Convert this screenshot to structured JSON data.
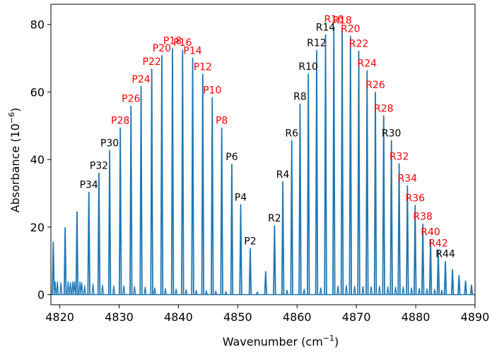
{
  "chart_data": {
    "type": "line",
    "xlabel": "Wavenumber (cm",
    "xlabel_sup": "−1",
    "xlabel_end": ")",
    "ylabel": "Absorbance (10",
    "ylabel_sup": "−6",
    "ylabel_end": ")",
    "xlim": [
      4818.5,
      4890
    ],
    "ylim": [
      -3,
      86
    ],
    "xticks": [
      4820,
      4830,
      4840,
      4850,
      4860,
      4870,
      4880,
      4890
    ],
    "yticks": [
      0,
      20,
      40,
      60,
      80
    ],
    "grid": false,
    "line_color": "#1f77b4",
    "colors": {
      "black": "#000000",
      "red": "#ff0000"
    },
    "peaks": [
      {
        "x": 4818.9,
        "y": 15.5,
        "label": "",
        "color": "black"
      },
      {
        "x": 4820.9,
        "y": 19.8,
        "label": "",
        "color": "black"
      },
      {
        "x": 4822.9,
        "y": 24.5,
        "label": "",
        "color": "black"
      },
      {
        "x": 4824.9,
        "y": 30.3,
        "label": "P34",
        "color": "black"
      },
      {
        "x": 4826.6,
        "y": 36.0,
        "label": "P32",
        "color": "black"
      },
      {
        "x": 4828.4,
        "y": 42.6,
        "label": "P30",
        "color": "black"
      },
      {
        "x": 4830.2,
        "y": 49.3,
        "label": "P28",
        "color": "red"
      },
      {
        "x": 4832.0,
        "y": 55.8,
        "label": "P26",
        "color": "red"
      },
      {
        "x": 4833.7,
        "y": 61.6,
        "label": "P24",
        "color": "red"
      },
      {
        "x": 4835.5,
        "y": 66.8,
        "label": "P22",
        "color": "red"
      },
      {
        "x": 4837.2,
        "y": 70.8,
        "label": "P20",
        "color": "red"
      },
      {
        "x": 4839.0,
        "y": 72.9,
        "label": "P18",
        "color": "red"
      },
      {
        "x": 4840.7,
        "y": 72.4,
        "label": "P16",
        "color": "red"
      },
      {
        "x": 4842.4,
        "y": 70.0,
        "label": "P14",
        "color": "red"
      },
      {
        "x": 4844.1,
        "y": 65.2,
        "label": "P12",
        "color": "red"
      },
      {
        "x": 4845.7,
        "y": 58.3,
        "label": "P10",
        "color": "red"
      },
      {
        "x": 4847.3,
        "y": 49.3,
        "label": "P8",
        "color": "red"
      },
      {
        "x": 4849.0,
        "y": 38.6,
        "label": "P6",
        "color": "black"
      },
      {
        "x": 4850.5,
        "y": 26.6,
        "label": "P4",
        "color": "black"
      },
      {
        "x": 4852.1,
        "y": 13.6,
        "label": "P2",
        "color": "black"
      },
      {
        "x": 4854.7,
        "y": 6.8,
        "label": "",
        "color": "black"
      },
      {
        "x": 4856.2,
        "y": 20.4,
        "label": "R2",
        "color": "black"
      },
      {
        "x": 4857.6,
        "y": 33.4,
        "label": "R4",
        "color": "black"
      },
      {
        "x": 4859.1,
        "y": 45.6,
        "label": "R6",
        "color": "black"
      },
      {
        "x": 4860.5,
        "y": 56.4,
        "label": "R8",
        "color": "black"
      },
      {
        "x": 4861.9,
        "y": 65.3,
        "label": "R10",
        "color": "black"
      },
      {
        "x": 4863.3,
        "y": 72.3,
        "label": "R12",
        "color": "black"
      },
      {
        "x": 4864.8,
        "y": 76.9,
        "label": "R14",
        "color": "black"
      },
      {
        "x": 4866.2,
        "y": 79.3,
        "label": "R16",
        "color": "red"
      },
      {
        "x": 4867.6,
        "y": 79.0,
        "label": "R18",
        "color": "red"
      },
      {
        "x": 4869.0,
        "y": 76.5,
        "label": "R20",
        "color": "red"
      },
      {
        "x": 4870.4,
        "y": 72.1,
        "label": "R22",
        "color": "red"
      },
      {
        "x": 4871.8,
        "y": 66.3,
        "label": "R24",
        "color": "red"
      },
      {
        "x": 4873.2,
        "y": 59.9,
        "label": "R26",
        "color": "red"
      },
      {
        "x": 4874.6,
        "y": 52.9,
        "label": "R28",
        "color": "red"
      },
      {
        "x": 4875.9,
        "y": 45.6,
        "label": "R30",
        "color": "black"
      },
      {
        "x": 4877.2,
        "y": 38.7,
        "label": "R32",
        "color": "red"
      },
      {
        "x": 4878.6,
        "y": 32.2,
        "label": "R34",
        "color": "red"
      },
      {
        "x": 4879.9,
        "y": 26.4,
        "label": "R36",
        "color": "red"
      },
      {
        "x": 4881.2,
        "y": 20.9,
        "label": "R38",
        "color": "red"
      },
      {
        "x": 4882.5,
        "y": 16.3,
        "label": "R40",
        "color": "red"
      },
      {
        "x": 4883.8,
        "y": 13.0,
        "label": "R42",
        "color": "red"
      },
      {
        "x": 4885.0,
        "y": 9.8,
        "label": "R44",
        "color": "black"
      },
      {
        "x": 4886.2,
        "y": 7.4,
        "label": "",
        "color": "black"
      },
      {
        "x": 4887.3,
        "y": 5.6,
        "label": "",
        "color": "black"
      },
      {
        "x": 4888.4,
        "y": 4.0,
        "label": "",
        "color": "black"
      },
      {
        "x": 4889.4,
        "y": 2.8,
        "label": "",
        "color": "black"
      }
    ],
    "minor_peaks": [
      {
        "x": 4819.2,
        "y": 3.8
      },
      {
        "x": 4819.6,
        "y": 3.8
      },
      {
        "x": 4820.2,
        "y": 3.5
      },
      {
        "x": 4821.4,
        "y": 3.8
      },
      {
        "x": 4821.8,
        "y": 3.6
      },
      {
        "x": 4822.2,
        "y": 3.8
      },
      {
        "x": 4822.5,
        "y": 3.8
      },
      {
        "x": 4823.4,
        "y": 3.8
      },
      {
        "x": 4823.7,
        "y": 3.5
      },
      {
        "x": 4824.2,
        "y": 2.6
      },
      {
        "x": 4825.6,
        "y": 3.1
      },
      {
        "x": 4827.2,
        "y": 2.8
      },
      {
        "x": 4829.1,
        "y": 2.6
      },
      {
        "x": 4830.8,
        "y": 2.6
      },
      {
        "x": 4832.6,
        "y": 2.4
      },
      {
        "x": 4834.4,
        "y": 2.2
      },
      {
        "x": 4836.0,
        "y": 2.0
      },
      {
        "x": 4837.8,
        "y": 1.8
      },
      {
        "x": 4839.6,
        "y": 1.6
      },
      {
        "x": 4841.3,
        "y": 1.5
      },
      {
        "x": 4843.0,
        "y": 1.3
      },
      {
        "x": 4844.7,
        "y": 1.2
      },
      {
        "x": 4846.3,
        "y": 1.0
      },
      {
        "x": 4848.0,
        "y": 0.9
      },
      {
        "x": 4853.3,
        "y": 0.8
      },
      {
        "x": 4858.3,
        "y": 1.3
      },
      {
        "x": 4861.2,
        "y": 1.6
      },
      {
        "x": 4864.0,
        "y": 2.0
      },
      {
        "x": 4866.9,
        "y": 2.5
      },
      {
        "x": 4868.3,
        "y": 2.7
      },
      {
        "x": 4869.7,
        "y": 2.5
      },
      {
        "x": 4871.1,
        "y": 2.4
      },
      {
        "x": 4872.5,
        "y": 2.3
      },
      {
        "x": 4873.9,
        "y": 2.5
      },
      {
        "x": 4875.3,
        "y": 2.3
      },
      {
        "x": 4876.6,
        "y": 2.2
      },
      {
        "x": 4877.9,
        "y": 2.3
      },
      {
        "x": 4879.3,
        "y": 2.0
      },
      {
        "x": 4880.6,
        "y": 1.8
      },
      {
        "x": 4881.9,
        "y": 1.7
      },
      {
        "x": 4883.2,
        "y": 1.5
      },
      {
        "x": 4884.4,
        "y": 1.3
      }
    ]
  }
}
